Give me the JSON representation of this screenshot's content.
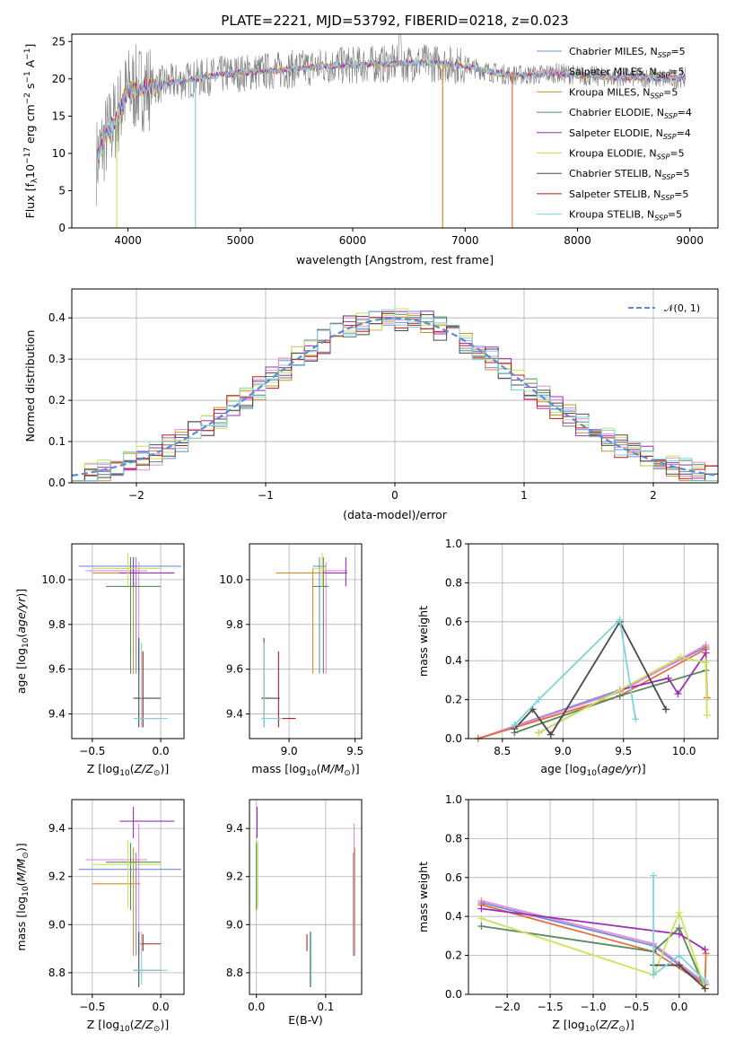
{
  "colors": {
    "Chabrier MILES": "#6c8fd6",
    "Salpeter MILES": "#e58ad6",
    "Kroupa MILES": "#d08f2c",
    "Chabrier ELODIE": "#5a8a5a",
    "Salpeter ELODIE": "#9b2fb8",
    "Kroupa ELODIE": "#cbe35a",
    "Chabrier STELIB": "#4a4a4a",
    "Salpeter STELIB": "#b41e1e",
    "Kroupa STELIB": "#7fd3de",
    "mix_orange": "#e86d3c",
    "spectrum_gray": "#7f7f7f"
  },
  "chart_data": [
    {
      "id": "spectrum",
      "type": "line",
      "title": "PLATE=2221, MJD=53792, FIBERID=0218, z=0.023",
      "xlabel": "wavelength [Angstrom, rest frame]",
      "ylabel_main": "Flux [f",
      "ylabel_sub": "λ",
      "ylabel_mid": "10",
      "ylabel_sup": "−17",
      "ylabel_tail": " erg cm",
      "ylabel_sup2": "−2",
      "ylabel_tail2": " s",
      "ylabel_sup3": "−1",
      "ylabel_tail3": " A",
      "ylabel_sup4": "−1",
      "ylabel_end": "]",
      "xlim": [
        3500,
        9250
      ],
      "ylim": [
        0,
        26
      ],
      "xticks": [
        4000,
        5000,
        6000,
        7000,
        8000,
        9000
      ],
      "yticks": [
        0,
        5,
        10,
        15,
        20,
        25
      ],
      "legend_position": "right",
      "legend": [
        {
          "name": "Chabrier MILES, N",
          "sub": "SSP",
          "tail": "=5",
          "color_key": "Chabrier MILES"
        },
        {
          "name": "Salpeter MILES, N",
          "sub": "SSP",
          "tail": "=5",
          "color_key": "Salpeter MILES"
        },
        {
          "name": "Kroupa MILES, N",
          "sub": "SSP",
          "tail": "=5",
          "color_key": "Kroupa MILES"
        },
        {
          "name": "Chabrier ELODIE, N",
          "sub": "SSP",
          "tail": "=4",
          "color_key": "Chabrier ELODIE"
        },
        {
          "name": "Salpeter ELODIE, N",
          "sub": "SSP",
          "tail": "=4",
          "color_key": "Salpeter ELODIE"
        },
        {
          "name": "Kroupa ELODIE, N",
          "sub": "SSP",
          "tail": "=5",
          "color_key": "Kroupa ELODIE"
        },
        {
          "name": "Chabrier STELIB, N",
          "sub": "SSP",
          "tail": "=5",
          "color_key": "Chabrier STELIB"
        },
        {
          "name": "Salpeter STELIB, N",
          "sub": "SSP",
          "tail": "=5",
          "color_key": "Salpeter STELIB"
        },
        {
          "name": "Kroupa STELIB, N",
          "sub": "SSP",
          "tail": "=5",
          "color_key": "Kroupa STELIB"
        }
      ],
      "continuum_anchor_points": [
        [
          3720,
          9
        ],
        [
          3800,
          12
        ],
        [
          3900,
          15
        ],
        [
          4000,
          18.5
        ],
        [
          4200,
          19
        ],
        [
          4400,
          19.5
        ],
        [
          4600,
          20
        ],
        [
          4800,
          20.5
        ],
        [
          5000,
          20.8
        ],
        [
          5200,
          21
        ],
        [
          5400,
          21.2
        ],
        [
          5600,
          21.5
        ],
        [
          5800,
          21.8
        ],
        [
          6000,
          21.8
        ],
        [
          6200,
          22
        ],
        [
          6400,
          22
        ],
        [
          6600,
          22.2
        ],
        [
          6800,
          22
        ],
        [
          7000,
          21.8
        ],
        [
          7200,
          21
        ],
        [
          7400,
          20.5
        ],
        [
          7600,
          20.5
        ],
        [
          7800,
          20.8
        ],
        [
          8000,
          20.5
        ],
        [
          8200,
          20.3
        ],
        [
          8400,
          20.2
        ],
        [
          8600,
          20.2
        ],
        [
          8800,
          20
        ],
        [
          8950,
          20.2
        ]
      ],
      "model_dropouts": [
        [
          4600,
          0
        ],
        [
          6800,
          0
        ],
        [
          7420,
          0
        ]
      ]
    },
    {
      "id": "residuals",
      "type": "histogram",
      "xlabel": "(data-model)/error",
      "ylabel": "Normed distribution",
      "xlim": [
        -2.5,
        2.5
      ],
      "ylim": [
        0,
        0.47
      ],
      "xticks": [
        -2,
        -1,
        0,
        1,
        2
      ],
      "xtick_labels": [
        "−2",
        "−1",
        "0",
        "1",
        "2"
      ],
      "yticks": [
        0,
        0.1,
        0.2,
        0.3,
        0.4
      ],
      "ytick_labels": [
        "0.0",
        "0.1",
        "0.2",
        "0.3",
        "0.4"
      ],
      "grid": true,
      "reference_curve": {
        "label": "𝒩(0, 1)",
        "mean": 0,
        "sigma": 1,
        "color": "#5b8bd6"
      },
      "legend_position": "upper right",
      "bin_width": 0.1
    },
    {
      "id": "z_age",
      "type": "errorbar",
      "xlabel": "Z [log",
      "xlabel_sub": "10",
      "xlabel_tail": "(Z/Z",
      "xlabel_sub2": "⊙",
      "xlabel_end": ")]",
      "ylabel": "age  [log",
      "ylabel_sub": "10",
      "ylabel_tail": "(age/yr)]",
      "xlim": [
        -0.65,
        0.17
      ],
      "ylim": [
        9.29,
        10.16
      ],
      "xticks": [
        -0.5,
        0.0
      ],
      "xtick_labels": [
        "−0.5",
        "0.0"
      ],
      "yticks": [
        9.4,
        9.6,
        9.8,
        10.0
      ],
      "ytick_labels": [
        "9.4",
        "9.6",
        "9.8",
        "10.0"
      ]
    },
    {
      "id": "mass_age",
      "type": "errorbar",
      "xlabel": "mass [log",
      "xlabel_sub": "10",
      "xlabel_tail": "(M/M",
      "xlabel_sub2": "⊙",
      "xlabel_end": ")]",
      "xlim": [
        8.7,
        9.55
      ],
      "ylim": [
        9.29,
        10.16
      ],
      "xticks": [
        9.0,
        9.5
      ],
      "xtick_labels": [
        "9.0",
        "9.5"
      ],
      "yticks": [
        9.4,
        9.6,
        9.8,
        10.0
      ],
      "ytick_labels": [
        "9.4",
        "9.6",
        "9.8",
        "10.0"
      ]
    },
    {
      "id": "age_weight",
      "type": "line",
      "xlabel": "age  [log",
      "xlabel_sub": "10",
      "xlabel_tail": "(age/yr)]",
      "ylabel": "mass weight",
      "xlim": [
        8.22,
        10.28
      ],
      "ylim": [
        0,
        1.0
      ],
      "xticks": [
        8.5,
        9.0,
        9.5,
        10.0
      ],
      "xtick_labels": [
        "8.5",
        "9.0",
        "9.5",
        "10.0"
      ],
      "yticks": [
        0,
        0.2,
        0.4,
        0.6,
        0.8,
        1.0
      ],
      "ytick_labels": [
        "0.0",
        "0.2",
        "0.4",
        "0.6",
        "0.8",
        "1.0"
      ],
      "grid": true,
      "series": [
        {
          "color_key": "Chabrier MILES",
          "x": [
            8.3,
            9.47,
            10.18
          ],
          "y": [
            0.0,
            0.25,
            0.47
          ]
        },
        {
          "color_key": "Salpeter MILES",
          "x": [
            8.3,
            9.47,
            10.18
          ],
          "y": [
            0.0,
            0.24,
            0.48
          ]
        },
        {
          "color_key": "mix_orange",
          "x": [
            8.3,
            9.47,
            10.18,
            10.19
          ],
          "y": [
            0.0,
            0.22,
            0.46,
            0.21
          ]
        },
        {
          "color_key": "Chabrier ELODIE",
          "x": [
            8.6,
            9.47,
            10.18
          ],
          "y": [
            0.03,
            0.22,
            0.35
          ]
        },
        {
          "color_key": "Salpeter ELODIE",
          "x": [
            8.8,
            9.47,
            9.87,
            9.95,
            10.18
          ],
          "y": [
            0.03,
            0.25,
            0.31,
            0.23,
            0.44
          ]
        },
        {
          "color_key": "Kroupa ELODIE",
          "x": [
            8.8,
            9.47,
            9.97,
            10.18,
            10.19
          ],
          "y": [
            0.03,
            0.25,
            0.42,
            0.39,
            0.12
          ]
        },
        {
          "color_key": "Chabrier STELIB",
          "x": [
            8.6,
            8.75,
            8.9,
            9.47,
            9.85
          ],
          "y": [
            0.05,
            0.15,
            0.02,
            0.6,
            0.15
          ]
        },
        {
          "color_key": "Kroupa STELIB",
          "x": [
            8.6,
            8.8,
            9.47,
            9.6
          ],
          "y": [
            0.07,
            0.2,
            0.61,
            0.1
          ]
        }
      ]
    },
    {
      "id": "z_mass",
      "type": "errorbar",
      "xlabel": "Z [log",
      "xlabel_sub": "10",
      "xlabel_tail": "(Z/Z",
      "xlabel_sub2": "⊙",
      "xlabel_end": ")]",
      "ylabel": "mass [log",
      "ylabel_sub": "10",
      "ylabel_tail": "(M/M",
      "ylabel_sub2": "⊙",
      "ylabel_end": ")]",
      "xlim": [
        -0.65,
        0.17
      ],
      "ylim": [
        8.71,
        9.52
      ],
      "xticks": [
        -0.5,
        0.0
      ],
      "xtick_labels": [
        "−0.5",
        "0.0"
      ],
      "yticks": [
        8.8,
        9.0,
        9.2,
        9.4
      ],
      "ytick_labels": [
        "8.8",
        "9.0",
        "9.2",
        "9.4"
      ]
    },
    {
      "id": "ebv_mass",
      "type": "errorbar",
      "xlabel": "E(B-V)",
      "xlim": [
        -0.01,
        0.152
      ],
      "ylim": [
        8.71,
        9.52
      ],
      "xticks": [
        0.0,
        0.1
      ],
      "xtick_labels": [
        "0.0",
        "0.1"
      ],
      "yticks": [
        8.8,
        9.0,
        9.2,
        9.4
      ],
      "ytick_labels": [
        "8.8",
        "9.0",
        "9.2",
        "9.4"
      ]
    },
    {
      "id": "z_weight",
      "type": "line",
      "xlabel": "Z [log",
      "xlabel_sub": "10",
      "xlabel_tail": "(Z/Z",
      "xlabel_sub2": "⊙",
      "xlabel_end": ")]",
      "ylabel": "mass weight",
      "xlim": [
        -2.45,
        0.45
      ],
      "ylim": [
        0,
        1.0
      ],
      "xticks": [
        -2.0,
        -1.5,
        -1.0,
        -0.5,
        0.0
      ],
      "xtick_labels": [
        "−2.0",
        "−1.5",
        "−1.0",
        "−0.5",
        "0.0"
      ],
      "yticks": [
        0,
        0.2,
        0.4,
        0.6,
        0.8,
        1.0
      ],
      "ytick_labels": [
        "0.0",
        "0.2",
        "0.4",
        "0.6",
        "0.8",
        "1.0"
      ],
      "grid": true,
      "series": [
        {
          "color_key": "Chabrier MILES",
          "x": [
            -2.3,
            -0.3,
            0.3
          ],
          "y": [
            0.47,
            0.25,
            0.05
          ]
        },
        {
          "color_key": "Salpeter MILES",
          "x": [
            -2.3,
            -0.3,
            0.3
          ],
          "y": [
            0.48,
            0.26,
            0.06
          ]
        },
        {
          "color_key": "mix_orange",
          "x": [
            -2.3,
            -0.3,
            0.3,
            0.31
          ],
          "y": [
            0.46,
            0.22,
            0.05,
            0.21
          ]
        },
        {
          "color_key": "Chabrier ELODIE",
          "x": [
            -2.3,
            -0.3,
            0.0,
            0.3
          ],
          "y": [
            0.35,
            0.22,
            0.34,
            0.03
          ]
        },
        {
          "color_key": "Salpeter ELODIE",
          "x": [
            -2.3,
            0.0,
            0.3
          ],
          "y": [
            0.44,
            0.31,
            0.23
          ]
        },
        {
          "color_key": "Kroupa ELODIE",
          "x": [
            -2.3,
            -0.3,
            0.0,
            0.3
          ],
          "y": [
            0.39,
            0.1,
            0.42,
            0.03
          ]
        },
        {
          "color_key": "Chabrier STELIB",
          "x": [
            -0.3,
            0.0,
            0.3
          ],
          "y": [
            0.15,
            0.15,
            0.03
          ]
        },
        {
          "color_key": "Kroupa STELIB",
          "x": [
            -0.3,
            -0.3,
            0.0,
            0.3
          ],
          "y": [
            0.61,
            0.1,
            0.2,
            0.07
          ]
        }
      ]
    }
  ],
  "points": [
    {
      "color_key": "Chabrier MILES",
      "Z": -0.18,
      "Z_lo": -0.6,
      "Z_hi": 0.15,
      "age": 10.06,
      "age_lo": 9.58,
      "age_hi": 10.1,
      "mass": 9.23,
      "mass_lo": 9.18,
      "mass_hi": 9.28,
      "ebv": 0.14,
      "mass2": 9.23,
      "mass2_lo": 8.87,
      "mass2_hi": 9.3
    },
    {
      "color_key": "Salpeter MILES",
      "Z": -0.16,
      "Z_lo": -0.55,
      "Z_hi": -0.1,
      "age": 10.04,
      "age_lo": 9.58,
      "age_hi": 10.08,
      "mass": 9.28,
      "mass_lo": 9.26,
      "mass_hi": 9.44,
      "ebv": 0.141,
      "mass2": 9.27,
      "mass2_lo": 8.87,
      "mass2_hi": 9.42
    },
    {
      "color_key": "Kroupa MILES",
      "Z": -0.2,
      "Z_lo": -0.5,
      "Z_hi": -0.15,
      "age": 10.03,
      "age_lo": 9.58,
      "age_hi": 10.05,
      "mass": 9.18,
      "mass_lo": 8.9,
      "mass_hi": 9.3,
      "ebv": 0.142,
      "mass2": 9.17,
      "mass2_lo": 8.87,
      "mass2_hi": 9.32
    },
    {
      "color_key": "Chabrier ELODIE",
      "Z": -0.22,
      "Z_lo": -0.4,
      "Z_hi": 0.0,
      "age": 9.97,
      "age_lo": 9.58,
      "age_hi": 10.1,
      "mass": 9.26,
      "mass_lo": 9.18,
      "mass_hi": 9.3,
      "ebv": 0.0,
      "mass2": 9.26,
      "mass2_lo": 9.06,
      "mass2_hi": 9.34
    },
    {
      "color_key": "Salpeter ELODIE",
      "Z": -0.2,
      "Z_lo": -0.3,
      "Z_hi": 0.1,
      "age": 10.03,
      "age_lo": 9.97,
      "age_hi": 10.1,
      "mass": 9.43,
      "mass_lo": 9.26,
      "mass_hi": 9.44,
      "ebv": 0.001,
      "mass2": 9.43,
      "mass2_lo": 9.36,
      "mass2_hi": 9.49
    },
    {
      "color_key": "Kroupa ELODIE",
      "Z": -0.24,
      "Z_lo": -0.5,
      "Z_hi": 0.0,
      "age": 10.05,
      "age_lo": 9.97,
      "age_hi": 10.12,
      "mass": 9.25,
      "mass_lo": 9.18,
      "mass_hi": 9.28,
      "ebv": 0.002,
      "mass2": 9.25,
      "mass2_lo": 9.07,
      "mass2_hi": 9.35
    },
    {
      "color_key": "Chabrier STELIB",
      "Z": -0.16,
      "Z_lo": -0.2,
      "Z_hi": 0.0,
      "age": 9.47,
      "age_lo": 9.34,
      "age_hi": 9.74,
      "mass": 8.81,
      "mass_lo": 8.79,
      "mass_hi": 8.93,
      "ebv": 0.078,
      "mass2": 8.81,
      "mass2_lo": 8.74,
      "mass2_hi": 8.97
    },
    {
      "color_key": "Salpeter STELIB",
      "Z": -0.13,
      "Z_lo": -0.15,
      "Z_hi": 0.0,
      "age": 9.38,
      "age_lo": 9.34,
      "age_hi": 9.68,
      "mass": 8.92,
      "mass_lo": 8.92,
      "mass_hi": 9.05,
      "ebv": 0.073,
      "mass2": 8.92,
      "mass2_lo": 8.89,
      "mass2_hi": 8.96
    },
    {
      "color_key": "Kroupa STELIB",
      "Z": -0.14,
      "Z_lo": -0.2,
      "Z_hi": 0.05,
      "age": 9.38,
      "age_lo": 9.34,
      "age_hi": 9.72,
      "mass": 8.81,
      "mass_lo": 8.79,
      "mass_hi": 8.95,
      "ebv": 0.079,
      "mass2": 8.81,
      "mass2_lo": 8.75,
      "mass2_hi": 8.97
    }
  ]
}
